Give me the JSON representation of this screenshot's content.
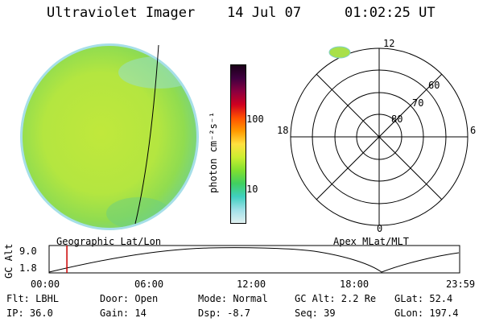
{
  "header": {
    "title": "Ultraviolet Imager",
    "date": "14 Jul 07",
    "time": "01:02:25 UT"
  },
  "colors": {
    "disk_main": "#b4e640",
    "disk_edge": "#7ed4c8",
    "spot": "#a8e04a",
    "timeline": "#000000",
    "marker": "#cc0000"
  },
  "colorbar": {
    "label": "photon cm⁻²s⁻¹",
    "ticks": [
      "100",
      "10"
    ],
    "stops": [
      "#1a0018",
      "#400040",
      "#8b0040",
      "#d00020",
      "#ff5000",
      "#ff9900",
      "#ffe040",
      "#ccee30",
      "#80e030",
      "#40d060",
      "#40d0c0",
      "#a0e0e8",
      "#e0f0f0"
    ]
  },
  "polar": {
    "labels": {
      "top": "12",
      "bottom": "0",
      "left": "18",
      "right": "6",
      "lat60": "60",
      "lat70": "70",
      "lat80": "80"
    }
  },
  "timeline": {
    "left_label": "Geographic Lat/Lon",
    "right_label": "Apex MLat/MLT",
    "y_axis_label": "GC Alt",
    "y_ticks": [
      "9.0",
      "1.8"
    ],
    "x_ticks": [
      "00:00",
      "06:00",
      "12:00",
      "18:00",
      "23:59"
    ],
    "marker_time_hours": 1.04
  },
  "info": {
    "flt": "Flt: LBHL",
    "door": "Door: Open",
    "mode": "Mode: Normal",
    "gc_alt": "GC Alt: 2.2 Re",
    "glat": "GLat:  52.4",
    "ip": "IP: 36.0",
    "gain": "Gain: 14",
    "dsp": "Dsp:    -8.7",
    "seq": "Seq: 39",
    "glon": "GLon: 197.4"
  }
}
